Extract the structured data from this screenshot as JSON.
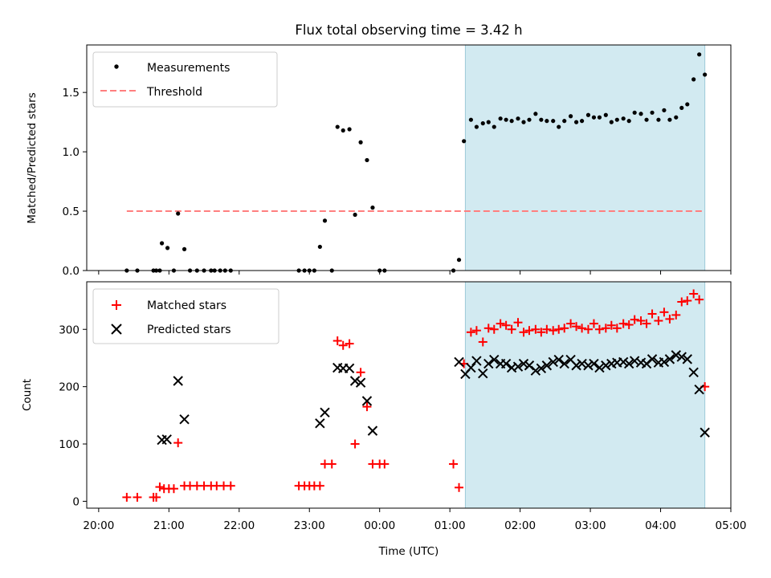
{
  "chart_data": [
    {
      "type": "scatter",
      "title": "Flux total observing time = 3.42 h",
      "xlabel": "",
      "ylabel": "Matched/Predicted stars",
      "xlim_hours": [
        19.83,
        29.0
      ],
      "ylim": [
        0,
        1.9
      ],
      "yticks": [
        0.0,
        0.5,
        1.0,
        1.5
      ],
      "ytick_labels": [
        "0.0",
        "0.5",
        "1.0",
        "1.5"
      ],
      "shaded_interval_hours": [
        25.22,
        28.63
      ],
      "shade_color": "#add8e6",
      "legend_location": "top-left",
      "legend": [
        {
          "label": "Measurements",
          "marker": "dot",
          "color": "#000000"
        },
        {
          "label": "Threshold",
          "marker": "dashed-line",
          "color": "#ff7f7f"
        }
      ],
      "threshold": {
        "value": 0.5,
        "x_range_hours": [
          20.4,
          28.63
        ],
        "color": "#ff7f7f"
      },
      "series": [
        {
          "name": "Measurements",
          "x": [
            20.4,
            20.55,
            20.78,
            20.82,
            20.87,
            20.9,
            20.98,
            21.07,
            21.13,
            21.22,
            21.3,
            21.4,
            21.5,
            21.6,
            21.65,
            21.73,
            21.8,
            21.88,
            22.85,
            22.93,
            23.0,
            23.07,
            23.15,
            23.22,
            23.32,
            23.4,
            23.48,
            23.57,
            23.65,
            23.73,
            23.82,
            23.9,
            24.0,
            24.07,
            25.05,
            25.13,
            25.2,
            25.3,
            25.38,
            25.47,
            25.55,
            25.63,
            25.72,
            25.8,
            25.88,
            25.97,
            26.05,
            26.13,
            26.22,
            26.3,
            26.38,
            26.47,
            26.55,
            26.63,
            26.72,
            26.8,
            26.88,
            26.97,
            27.05,
            27.13,
            27.22,
            27.3,
            27.38,
            27.47,
            27.55,
            27.63,
            27.72,
            27.8,
            27.88,
            27.97,
            28.05,
            28.13,
            28.22,
            28.3,
            28.38,
            28.47,
            28.55,
            28.63
          ],
          "y": [
            0.0,
            0.0,
            0.0,
            0.0,
            0.0,
            0.23,
            0.19,
            0.0,
            0.48,
            0.18,
            0.0,
            0.0,
            0.0,
            0.0,
            0.0,
            0.0,
            0.0,
            0.0,
            0.0,
            0.0,
            0.0,
            0.0,
            0.2,
            0.42,
            0.0,
            1.21,
            1.18,
            1.19,
            0.47,
            1.08,
            0.93,
            0.53,
            0.0,
            0.0,
            0.0,
            0.09,
            1.09,
            1.27,
            1.21,
            1.24,
            1.25,
            1.21,
            1.28,
            1.27,
            1.26,
            1.28,
            1.25,
            1.27,
            1.32,
            1.27,
            1.26,
            1.26,
            1.21,
            1.26,
            1.3,
            1.25,
            1.26,
            1.31,
            1.29,
            1.29,
            1.31,
            1.25,
            1.27,
            1.28,
            1.26,
            1.33,
            1.32,
            1.27,
            1.33,
            1.27,
            1.35,
            1.27,
            1.29,
            1.37,
            1.4,
            1.61,
            1.82,
            1.65
          ]
        }
      ]
    },
    {
      "type": "scatter",
      "title": "",
      "xlabel": "Time (UTC)",
      "ylabel": "Count",
      "xlim_hours": [
        19.83,
        29.0
      ],
      "ylim": [
        -12,
        383
      ],
      "yticks": [
        0,
        100,
        200,
        300
      ],
      "ytick_labels": [
        "0",
        "100",
        "200",
        "300"
      ],
      "xticks_hours": [
        20,
        21,
        22,
        23,
        24,
        25,
        26,
        27,
        28,
        29
      ],
      "xtick_labels": [
        "20:00",
        "21:00",
        "22:00",
        "23:00",
        "00:00",
        "01:00",
        "02:00",
        "03:00",
        "04:00",
        "05:00"
      ],
      "shaded_interval_hours": [
        25.22,
        28.63
      ],
      "shade_color": "#add8e6",
      "legend_location": "top-left",
      "legend": [
        {
          "label": "Matched stars",
          "marker": "plus",
          "color": "#ff0000"
        },
        {
          "label": "Predicted stars",
          "marker": "x",
          "color": "#000000"
        }
      ],
      "series": [
        {
          "name": "Matched stars",
          "marker": "plus",
          "color": "#ff0000",
          "x": [
            20.4,
            20.55,
            20.78,
            20.82,
            20.87,
            20.93,
            21.0,
            21.07,
            21.13,
            21.22,
            21.3,
            21.4,
            21.5,
            21.6,
            21.68,
            21.78,
            21.88,
            22.85,
            22.93,
            23.0,
            23.07,
            23.15,
            23.22,
            23.32,
            23.4,
            23.48,
            23.57,
            23.65,
            23.73,
            23.82,
            23.9,
            24.0,
            24.07,
            25.05,
            25.13,
            25.2,
            25.3,
            25.38,
            25.47,
            25.55,
            25.63,
            25.72,
            25.8,
            25.88,
            25.97,
            26.05,
            26.13,
            26.22,
            26.3,
            26.38,
            26.47,
            26.55,
            26.63,
            26.72,
            26.8,
            26.88,
            26.97,
            27.05,
            27.13,
            27.22,
            27.3,
            27.38,
            27.47,
            27.55,
            27.63,
            27.72,
            27.8,
            27.88,
            27.97,
            28.05,
            28.13,
            28.22,
            28.3,
            28.38,
            28.47,
            28.55,
            28.63
          ],
          "y": [
            7,
            7,
            7,
            7,
            25,
            22,
            22,
            22,
            102,
            27,
            27,
            27,
            27,
            27,
            27,
            27,
            27,
            27,
            27,
            27,
            27,
            27,
            65,
            65,
            280,
            272,
            275,
            100,
            225,
            165,
            65,
            65,
            65,
            65,
            24,
            240,
            295,
            298,
            278,
            302,
            300,
            310,
            307,
            300,
            312,
            295,
            298,
            300,
            295,
            300,
            298,
            300,
            302,
            310,
            305,
            302,
            300,
            310,
            300,
            302,
            307,
            302,
            310,
            308,
            317,
            315,
            310,
            327,
            315,
            330,
            318,
            325,
            348,
            350,
            362,
            352,
            200
          ]
        },
        {
          "name": "Predicted stars",
          "marker": "x",
          "color": "#000000",
          "x": [
            20.9,
            20.97,
            21.13,
            21.22,
            23.15,
            23.22,
            23.4,
            23.48,
            23.57,
            23.65,
            23.73,
            23.82,
            23.9,
            25.13,
            25.22,
            25.3,
            25.38,
            25.47,
            25.55,
            25.63,
            25.72,
            25.8,
            25.88,
            25.97,
            26.05,
            26.13,
            26.22,
            26.3,
            26.38,
            26.47,
            26.55,
            26.63,
            26.72,
            26.8,
            26.88,
            26.97,
            27.05,
            27.13,
            27.22,
            27.3,
            27.38,
            27.47,
            27.55,
            27.63,
            27.72,
            27.8,
            27.88,
            27.97,
            28.05,
            28.13,
            28.22,
            28.3,
            28.38,
            28.47,
            28.55,
            28.63
          ],
          "y": [
            107,
            108,
            210,
            143,
            136,
            155,
            233,
            232,
            232,
            210,
            207,
            175,
            123,
            243,
            222,
            233,
            245,
            223,
            240,
            247,
            240,
            240,
            233,
            235,
            240,
            237,
            228,
            232,
            237,
            243,
            247,
            240,
            247,
            237,
            240,
            237,
            240,
            233,
            237,
            240,
            242,
            243,
            240,
            245,
            242,
            240,
            248,
            242,
            243,
            248,
            255,
            252,
            248,
            225,
            195,
            120
          ]
        }
      ]
    }
  ]
}
